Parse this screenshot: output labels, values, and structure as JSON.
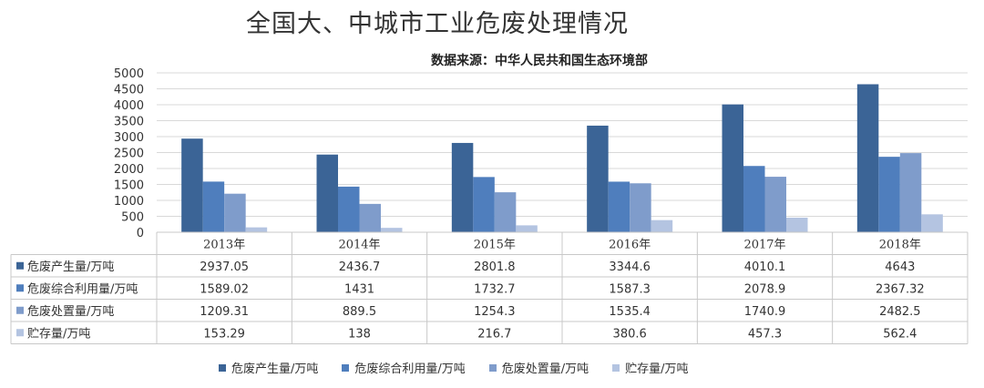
{
  "chart_data": {
    "type": "bar",
    "title": "全国大、中城市工业危废处理情况",
    "subtitle": "数据来源：中华人民共和国生态环境部",
    "categories": [
      "2013年",
      "2014年",
      "2015年",
      "2016年",
      "2017年",
      "2018年"
    ],
    "series": [
      {
        "name": "危废产生量/万吨",
        "color": "#3b6496",
        "values": [
          2937.05,
          2436.7,
          2801.8,
          3344.6,
          4010.1,
          4643
        ],
        "labels": [
          "2937.05",
          "2436.7",
          "2801.8",
          "3344.6",
          "4010.1",
          "4643"
        ]
      },
      {
        "name": "危废综合利用量/万吨",
        "color": "#4f7ebd",
        "values": [
          1589.02,
          1431,
          1732.7,
          1587.3,
          2078.9,
          2367.32
        ],
        "labels": [
          "1589.02",
          "1431",
          "1732.7",
          "1587.3",
          "2078.9",
          "2367.32"
        ]
      },
      {
        "name": "危废处置量/万吨",
        "color": "#7f9ccb",
        "values": [
          1209.31,
          889.5,
          1254.3,
          1535.4,
          1740.9,
          2482.5
        ],
        "labels": [
          "1209.31",
          "889.5",
          "1254.3",
          "1535.4",
          "1740.9",
          "2482.5"
        ]
      },
      {
        "name": "贮存量/万吨",
        "color": "#b4c4e1",
        "values": [
          153.29,
          138,
          216.7,
          380.6,
          457.3,
          562.4
        ],
        "labels": [
          "153.29",
          "138",
          "216.7",
          "380.6",
          "457.3",
          "562.4"
        ]
      }
    ],
    "ylim": [
      0,
      5000
    ],
    "yticks": [
      "0",
      "500",
      "1000",
      "1500",
      "2000",
      "2500",
      "3000",
      "3500",
      "4000",
      "4500",
      "5000"
    ],
    "grid": true,
    "legend": "bottom",
    "data_table": true
  }
}
